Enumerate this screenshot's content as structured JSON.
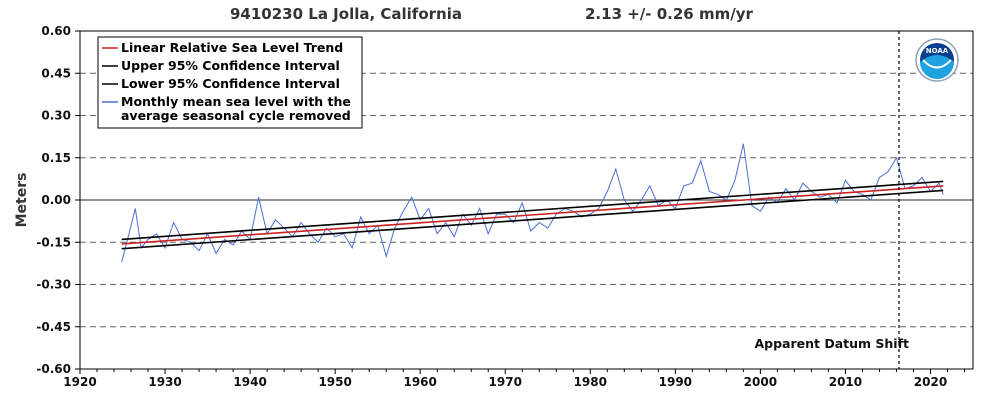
{
  "chart_data": {
    "type": "line",
    "title_station": "9410230 La Jolla, California",
    "title_rate": "2.13 +/-  0.26 mm/yr",
    "ylabel": "Meters",
    "xlim": [
      1920,
      2025
    ],
    "ylim": [
      -0.6,
      0.6
    ],
    "x_ticks": [
      1920,
      1930,
      1940,
      1950,
      1960,
      1970,
      1980,
      1990,
      2000,
      2010,
      2020
    ],
    "y_ticks": [
      0.6,
      0.45,
      0.3,
      0.15,
      0.0,
      -0.15,
      -0.3,
      -0.45,
      -0.6
    ],
    "y_tick_labels": [
      "0.60",
      "0.45",
      "0.30",
      "0.15",
      "0.00",
      "-0.15",
      "-0.30",
      "-0.45",
      "-0.60"
    ],
    "grid": "horizontal dashed",
    "legend_position": "top-left",
    "series": [
      {
        "name": "Linear Relative Sea Level Trend",
        "color": "#cc2222",
        "x": [
          1924.9,
          2021.5
        ],
        "y": [
          -0.156,
          0.05
        ]
      },
      {
        "name": "Upper 95% Confidence Interval",
        "color": "#000000",
        "x": [
          1924.9,
          2021.5
        ],
        "y": [
          -0.14,
          0.066
        ]
      },
      {
        "name": "Lower 95% Confidence Interval",
        "color": "#000000",
        "x": [
          1924.9,
          2021.5
        ],
        "y": [
          -0.173,
          0.034
        ]
      },
      {
        "name": "Monthly mean sea level with the average seasonal cycle removed",
        "color": "#4a6fd6",
        "x": [
          1924.9,
          1925.5,
          1926.5,
          1927.2,
          1928.0,
          1929.0,
          1930.0,
          1931.0,
          1932.0,
          1933.0,
          1934.0,
          1935.0,
          1936.0,
          1937.0,
          1938.0,
          1939.0,
          1940.0,
          1941.0,
          1942.0,
          1943.0,
          1944.0,
          1945.0,
          1946.0,
          1947.0,
          1948.0,
          1949.0,
          1950.0,
          1951.0,
          1952.0,
          1953.0,
          1954.0,
          1955.0,
          1956.0,
          1957.0,
          1958.0,
          1959.0,
          1960.0,
          1961.0,
          1962.0,
          1963.0,
          1964.0,
          1965.0,
          1966.0,
          1967.0,
          1968.0,
          1969.0,
          1970.0,
          1971.0,
          1972.0,
          1973.0,
          1974.0,
          1975.0,
          1976.0,
          1977.0,
          1978.0,
          1979.0,
          1980.0,
          1981.0,
          1982.0,
          1983.0,
          1984.0,
          1985.0,
          1986.0,
          1987.0,
          1988.0,
          1989.0,
          1990.0,
          1991.0,
          1992.0,
          1993.0,
          1994.0,
          1995.0,
          1996.0,
          1997.0,
          1998.0,
          1999.0,
          2000.0,
          2001.0,
          2002.0,
          2003.0,
          2004.0,
          2005.0,
          2006.0,
          2007.0,
          2008.0,
          2009.0,
          2010.0,
          2011.0,
          2012.0,
          2013.0,
          2014.0,
          2015.0,
          2016.0,
          2017.0,
          2018.0,
          2019.0,
          2020.0,
          2021.0,
          2021.5
        ],
        "y": [
          -0.22,
          -0.15,
          -0.03,
          -0.17,
          -0.14,
          -0.12,
          -0.17,
          -0.08,
          -0.14,
          -0.15,
          -0.18,
          -0.12,
          -0.19,
          -0.14,
          -0.16,
          -0.11,
          -0.14,
          0.01,
          -0.12,
          -0.07,
          -0.1,
          -0.13,
          -0.08,
          -0.12,
          -0.15,
          -0.1,
          -0.13,
          -0.12,
          -0.17,
          -0.06,
          -0.12,
          -0.09,
          -0.2,
          -0.1,
          -0.04,
          0.01,
          -0.07,
          -0.03,
          -0.12,
          -0.08,
          -0.13,
          -0.05,
          -0.09,
          -0.03,
          -0.12,
          -0.05,
          -0.05,
          -0.08,
          -0.01,
          -0.11,
          -0.08,
          -0.1,
          -0.05,
          -0.03,
          -0.04,
          -0.06,
          -0.05,
          -0.03,
          0.03,
          0.11,
          0.0,
          -0.04,
          0.0,
          0.05,
          -0.02,
          0.0,
          -0.03,
          0.05,
          0.06,
          0.14,
          0.03,
          0.02,
          0.0,
          0.07,
          0.2,
          -0.02,
          -0.04,
          0.01,
          -0.01,
          0.04,
          0.0,
          0.06,
          0.03,
          0.01,
          0.02,
          -0.01,
          0.07,
          0.03,
          0.02,
          0.0,
          0.08,
          0.1,
          0.15,
          0.04,
          0.05,
          0.08,
          0.03,
          0.06,
          0.02
        ]
      }
    ],
    "datum_shift_x": 2016.3,
    "annotation": "Apparent Datum Shift",
    "logo_text": "NOAA"
  }
}
